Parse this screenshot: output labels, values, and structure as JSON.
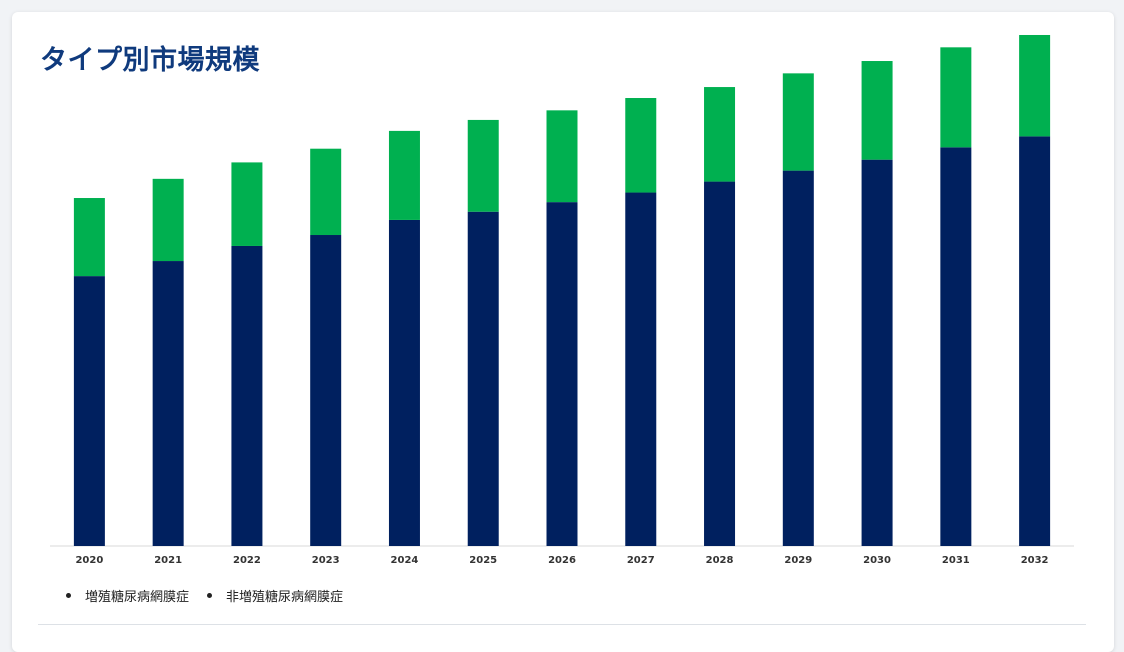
{
  "card": {
    "title": "タイプ別市場規模"
  },
  "chart_data": {
    "type": "bar",
    "stacked": true,
    "categories": [
      "2020",
      "2021",
      "2022",
      "2023",
      "2024",
      "2025",
      "2026",
      "2027",
      "2028",
      "2029",
      "2030",
      "2031",
      "2032"
    ],
    "series": [
      {
        "name": "増殖糖尿病網膜症",
        "color": "#00b050",
        "values": [
          57,
          60,
          61,
          63,
          65,
          67,
          67,
          69,
          69,
          71,
          72,
          73,
          74
        ]
      },
      {
        "name": "非増殖糖尿病網膜症",
        "color": "#00205f",
        "values": [
          197,
          208,
          219,
          227,
          238,
          244,
          251,
          258,
          266,
          274,
          282,
          291,
          299
        ]
      }
    ],
    "title": "",
    "xlabel": "",
    "ylabel": "",
    "ylim": [
      0,
      400
    ],
    "grid": false,
    "legend_position": "bottom-left",
    "y_tick_labels": false
  },
  "legend": {
    "items": [
      {
        "label": "増殖糖尿病網膜症",
        "bullet": "•"
      },
      {
        "label": "非増殖糖尿病網膜症",
        "bullet": "•"
      }
    ]
  }
}
